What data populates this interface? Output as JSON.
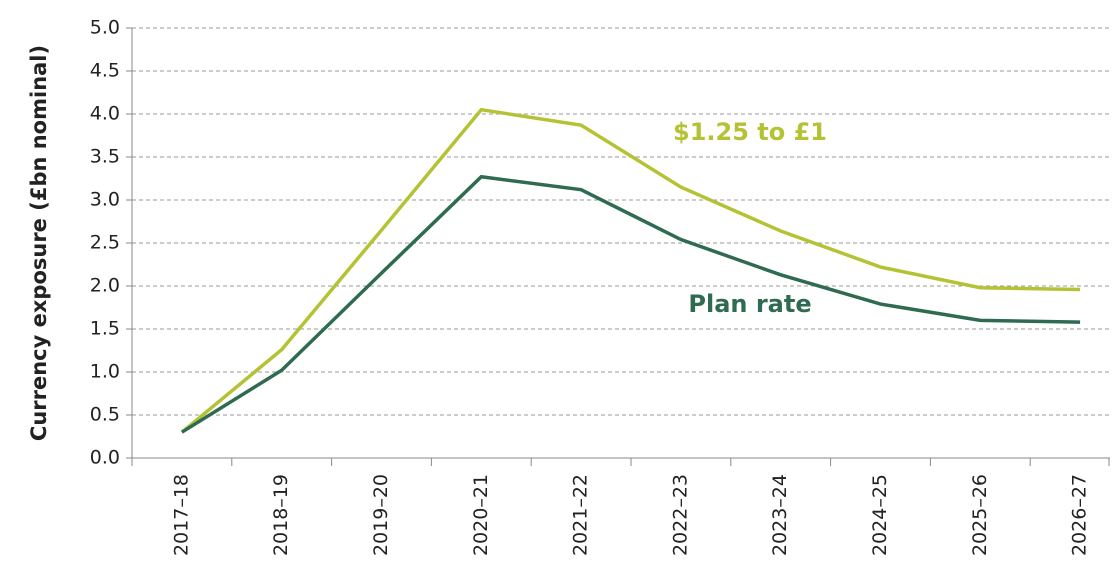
{
  "chart_data": {
    "type": "line",
    "y_label": "Currency exposure (£bn nominal)",
    "categories": [
      "2017–18",
      "2018–19",
      "2019–20",
      "2020–21",
      "2021–22",
      "2022–23",
      "2023–24",
      "2024–25",
      "2025–26",
      "2026–27"
    ],
    "series": [
      {
        "name": "$1.25 to £1",
        "color": "#b5c234",
        "values": [
          0.3,
          1.26,
          2.65,
          4.05,
          3.87,
          3.15,
          2.64,
          2.22,
          1.98,
          1.96
        ]
      },
      {
        "name": "Plan rate",
        "color": "#2f6b50",
        "values": [
          0.3,
          1.02,
          2.15,
          3.27,
          3.12,
          2.54,
          2.13,
          1.79,
          1.6,
          1.58
        ]
      }
    ],
    "ylim": [
      0,
      5
    ],
    "yticks": [
      {
        "value": 0,
        "label": "0.0"
      },
      0.5,
      {
        "value": 1,
        "label": "1.0"
      },
      1.5,
      {
        "value": 2,
        "label": "2.0"
      },
      2.5,
      {
        "value": 3,
        "label": "3.0"
      },
      3.5,
      {
        "value": 4,
        "label": "4.0"
      },
      4.5,
      {
        "value": 5,
        "label": "5.0"
      }
    ],
    "grid": true
  }
}
